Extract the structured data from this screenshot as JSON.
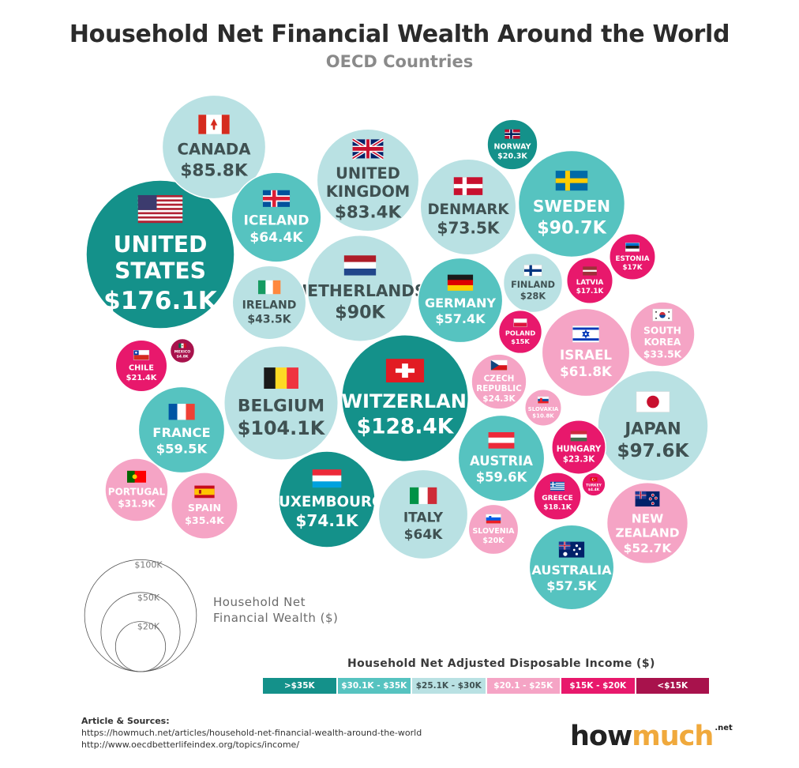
{
  "header": {
    "title": "Household Net Financial Wealth Around the World",
    "subtitle": "OECD Countries"
  },
  "colors": {
    "tier1": "#14918a",
    "tier2": "#56c3c0",
    "tier3": "#b9e1e3",
    "tier4": "#f5a4c5",
    "tier5": "#e8186c",
    "tier6": "#a8124c"
  },
  "chart_data": {
    "type": "bubble",
    "size_measure": "Household Net Financial Wealth ($)",
    "color_measure": "Household Net Adjusted Disposable Income ($)",
    "size_legend": {
      "title_line1": "Household Net",
      "title_line2": "Financial Wealth ($)",
      "items": [
        {
          "label": "$100K",
          "value": 100
        },
        {
          "label": "$50K",
          "value": 50
        },
        {
          "label": "$20K",
          "value": 20
        }
      ]
    },
    "color_legend": {
      "title": "Household Net Adjusted Disposable Income ($)",
      "bins": [
        {
          "label": ">$35K",
          "tier": 1
        },
        {
          "label": "$30.1K - $35K",
          "tier": 2
        },
        {
          "label": "$25.1K - $30K",
          "tier": 3
        },
        {
          "label": "$20.1 - $25K",
          "tier": 4
        },
        {
          "label": "$15K - $20K",
          "tier": 5
        },
        {
          "label": "<$15K",
          "tier": 6
        }
      ]
    },
    "countries": [
      {
        "id": "united-states",
        "lines": [
          "UNITED",
          "STATES"
        ],
        "value": 176.1,
        "label": "$176.1K",
        "tier": 1,
        "flag": "us"
      },
      {
        "id": "switzerland",
        "lines": [
          "SWITZERLAND"
        ],
        "value": 128.4,
        "label": "$128.4K",
        "tier": 1,
        "flag": "ch"
      },
      {
        "id": "belgium",
        "lines": [
          "BELGIUM"
        ],
        "value": 104.1,
        "label": "$104.1K",
        "tier": 3,
        "flag": "be"
      },
      {
        "id": "japan",
        "lines": [
          "JAPAN"
        ],
        "value": 97.6,
        "label": "$97.6K",
        "tier": 3,
        "flag": "jp"
      },
      {
        "id": "sweden",
        "lines": [
          "SWEDEN"
        ],
        "value": 90.7,
        "label": "$90.7K",
        "tier": 2,
        "flag": "se"
      },
      {
        "id": "netherlands",
        "lines": [
          "NETHERLANDS"
        ],
        "value": 90,
        "label": "$90K",
        "tier": 3,
        "flag": "nl"
      },
      {
        "id": "canada",
        "lines": [
          "CANADA"
        ],
        "value": 85.8,
        "label": "$85.8K",
        "tier": 3,
        "flag": "ca"
      },
      {
        "id": "united-kingdom",
        "lines": [
          "UNITED",
          "KINGDOM"
        ],
        "value": 83.4,
        "label": "$83.4K",
        "tier": 3,
        "flag": "gb"
      },
      {
        "id": "luxembourg",
        "lines": [
          "LUXEMBOURG"
        ],
        "value": 74.1,
        "label": "$74.1K",
        "tier": 1,
        "flag": "lu"
      },
      {
        "id": "denmark",
        "lines": [
          "DENMARK"
        ],
        "value": 73.5,
        "label": "$73.5K",
        "tier": 3,
        "flag": "dk"
      },
      {
        "id": "iceland",
        "lines": [
          "ICELAND"
        ],
        "value": 64.4,
        "label": "$64.4K",
        "tier": 2,
        "flag": "is"
      },
      {
        "id": "italy",
        "lines": [
          "ITALY"
        ],
        "value": 64,
        "label": "$64K",
        "tier": 3,
        "flag": "it"
      },
      {
        "id": "israel",
        "lines": [
          "ISRAEL"
        ],
        "value": 61.8,
        "label": "$61.8K",
        "tier": 4,
        "flag": "il"
      },
      {
        "id": "austria",
        "lines": [
          "AUSTRIA"
        ],
        "value": 59.6,
        "label": "$59.6K",
        "tier": 2,
        "flag": "at"
      },
      {
        "id": "france",
        "lines": [
          "FRANCE"
        ],
        "value": 59.5,
        "label": "$59.5K",
        "tier": 2,
        "flag": "fr"
      },
      {
        "id": "australia",
        "lines": [
          "AUSTRALIA"
        ],
        "value": 57.5,
        "label": "$57.5K",
        "tier": 2,
        "flag": "au"
      },
      {
        "id": "germany",
        "lines": [
          "GERMANY"
        ],
        "value": 57.4,
        "label": "$57.4K",
        "tier": 2,
        "flag": "de"
      },
      {
        "id": "new-zealand",
        "lines": [
          "NEW",
          "ZEALAND"
        ],
        "value": 52.7,
        "label": "$52.7K",
        "tier": 4,
        "flag": "nz"
      },
      {
        "id": "ireland",
        "lines": [
          "IRELAND"
        ],
        "value": 43.5,
        "label": "$43.5K",
        "tier": 3,
        "flag": "ie"
      },
      {
        "id": "spain",
        "lines": [
          "SPAIN"
        ],
        "value": 35.4,
        "label": "$35.4K",
        "tier": 4,
        "flag": "es"
      },
      {
        "id": "south-korea",
        "lines": [
          "SOUTH",
          "KOREA"
        ],
        "value": 33.5,
        "label": "$33.5K",
        "tier": 4,
        "flag": "kr"
      },
      {
        "id": "portugal",
        "lines": [
          "PORTUGAL"
        ],
        "value": 31.9,
        "label": "$31.9K",
        "tier": 4,
        "flag": "pt"
      },
      {
        "id": "finland",
        "lines": [
          "FINLAND"
        ],
        "value": 28,
        "label": "$28K",
        "tier": 3,
        "flag": "fi"
      },
      {
        "id": "czech-republic",
        "lines": [
          "CZECH",
          "REPUBLIC"
        ],
        "value": 24.3,
        "label": "$24.3K",
        "tier": 4,
        "flag": "cz"
      },
      {
        "id": "hungary",
        "lines": [
          "HUNGARY"
        ],
        "value": 23.3,
        "label": "$23.3K",
        "tier": 5,
        "flag": "hu"
      },
      {
        "id": "chile",
        "lines": [
          "CHILE"
        ],
        "value": 21.4,
        "label": "$21.4K",
        "tier": 5,
        "flag": "cl"
      },
      {
        "id": "norway",
        "lines": [
          "NORWAY"
        ],
        "value": 20.3,
        "label": "$20.3K",
        "tier": 1,
        "flag": "no"
      },
      {
        "id": "slovenia",
        "lines": [
          "SLOVENIA"
        ],
        "value": 20,
        "label": "$20K",
        "tier": 4,
        "flag": "si"
      },
      {
        "id": "greece",
        "lines": [
          "GREECE"
        ],
        "value": 18.1,
        "label": "$18.1K",
        "tier": 5,
        "flag": "gr"
      },
      {
        "id": "latvia",
        "lines": [
          "LATVIA"
        ],
        "value": 17.1,
        "label": "$17.1K",
        "tier": 5,
        "flag": "lv"
      },
      {
        "id": "estonia",
        "lines": [
          "ESTONIA"
        ],
        "value": 17,
        "label": "$17K",
        "tier": 5,
        "flag": "ee"
      },
      {
        "id": "poland",
        "lines": [
          "POLAND"
        ],
        "value": 15,
        "label": "$15K",
        "tier": 5,
        "flag": "pl"
      },
      {
        "id": "slovakia",
        "lines": [
          "SLOVAKIA"
        ],
        "value": 10.8,
        "label": "$10.8K",
        "tier": 4,
        "flag": "sk"
      },
      {
        "id": "mexico",
        "lines": [
          "MEXICO"
        ],
        "value": 4.8,
        "label": "$4.8K",
        "tier": 6,
        "flag": "mx"
      },
      {
        "id": "turkey",
        "lines": [
          "TURKEY"
        ],
        "value": 4.4,
        "label": "$4.4K",
        "tier": 5,
        "flag": "tr"
      }
    ]
  },
  "sources": {
    "heading": "Article & Sources:",
    "line1": "https://howmuch.net/articles/household-net-financial-wealth-around-the-world",
    "line2": "http://www.oecdbetterlifeindex.org/topics/income/"
  },
  "logo": {
    "part1": "how",
    "part2": "much",
    "suffix": ".net"
  }
}
